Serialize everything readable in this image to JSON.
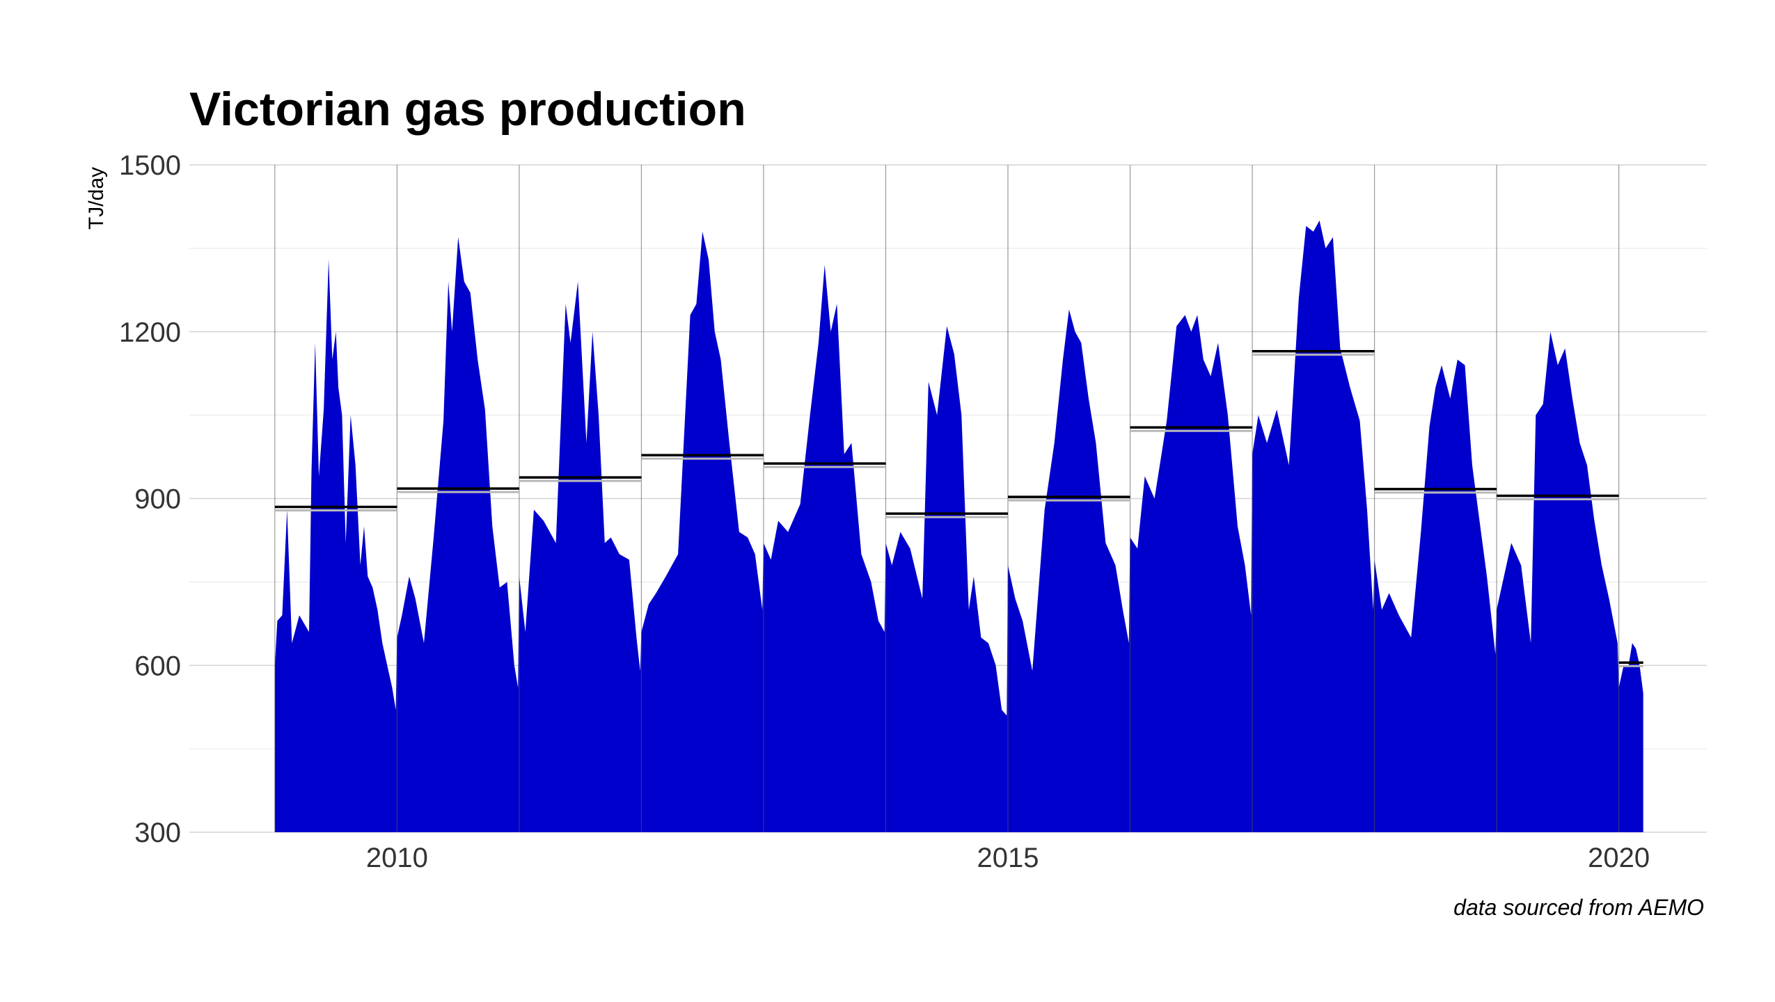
{
  "chart_data": {
    "type": "area",
    "title": "Victorian gas production",
    "ylabel": "TJ/day",
    "xlabel": "",
    "caption": "data sourced from AEMO",
    "ylim": [
      300,
      1500
    ],
    "xlim": [
      2008.3,
      2020.72
    ],
    "y_ticks": [
      300,
      600,
      900,
      1200,
      1500
    ],
    "y_tick_labels": [
      "300",
      "600",
      "900",
      "1200",
      "1500"
    ],
    "x_ticks": [
      2010,
      2015,
      2020
    ],
    "x_tick_labels": [
      "2010",
      "2015",
      "2020"
    ],
    "year_boundaries": [
      2009,
      2010,
      2011,
      2012,
      2013,
      2014,
      2015,
      2016,
      2017,
      2018,
      2019,
      2020
    ],
    "grid": true,
    "fill_color": "#0000CC",
    "mean_line_color": "#000000",
    "series": [
      {
        "x": [
          2009.0,
          2009.02,
          2009.06,
          2009.1,
          2009.14,
          2009.2,
          2009.28,
          2009.3,
          2009.33,
          2009.36,
          2009.4,
          2009.44,
          2009.47,
          2009.5,
          2009.52,
          2009.55,
          2009.58,
          2009.62,
          2009.66,
          2009.7,
          2009.73,
          2009.76,
          2009.8,
          2009.84,
          2009.88,
          2009.92,
          2009.96,
          2009.99,
          2010.0,
          2010.04,
          2010.1,
          2010.15,
          2010.22,
          2010.3,
          2010.38,
          2010.42,
          2010.45,
          2010.5,
          2010.55,
          2010.6,
          2010.66,
          2010.72,
          2010.78,
          2010.84,
          2010.9,
          2010.96,
          2010.99,
          2011.0,
          2011.05,
          2011.12,
          2011.2,
          2011.3,
          2011.38,
          2011.42,
          2011.48,
          2011.55,
          2011.6,
          2011.65,
          2011.7,
          2011.75,
          2011.82,
          2011.9,
          2011.96,
          2011.99,
          2012.0,
          2012.06,
          2012.12,
          2012.2,
          2012.3,
          2012.4,
          2012.45,
          2012.5,
          2012.55,
          2012.6,
          2012.65,
          2012.72,
          2012.8,
          2012.87,
          2012.93,
          2012.99,
          2013.0,
          2013.06,
          2013.12,
          2013.2,
          2013.3,
          2013.38,
          2013.45,
          2013.5,
          2013.55,
          2013.6,
          2013.66,
          2013.72,
          2013.8,
          2013.88,
          2013.94,
          2013.99,
          2014.0,
          2014.05,
          2014.12,
          2014.2,
          2014.3,
          2014.35,
          2014.42,
          2014.5,
          2014.56,
          2014.62,
          2014.68,
          2014.72,
          2014.78,
          2014.84,
          2014.9,
          2014.95,
          2014.99,
          2015.0,
          2015.06,
          2015.12,
          2015.2,
          2015.3,
          2015.38,
          2015.45,
          2015.5,
          2015.55,
          2015.6,
          2015.66,
          2015.72,
          2015.8,
          2015.88,
          2015.94,
          2015.99,
          2016.0,
          2016.06,
          2016.12,
          2016.2,
          2016.3,
          2016.38,
          2016.45,
          2016.5,
          2016.55,
          2016.6,
          2016.66,
          2016.72,
          2016.8,
          2016.88,
          2016.94,
          2016.99,
          2017.0,
          2017.05,
          2017.12,
          2017.2,
          2017.3,
          2017.38,
          2017.44,
          2017.5,
          2017.55,
          2017.6,
          2017.66,
          2017.72,
          2017.8,
          2017.88,
          2017.94,
          2017.99,
          2018.0,
          2018.06,
          2018.12,
          2018.2,
          2018.3,
          2018.38,
          2018.45,
          2018.5,
          2018.55,
          2018.62,
          2018.68,
          2018.74,
          2018.8,
          2018.86,
          2018.92,
          2018.99,
          2019.0,
          2019.06,
          2019.12,
          2019.2,
          2019.28,
          2019.32,
          2019.38,
          2019.44,
          2019.5,
          2019.56,
          2019.62,
          2019.68,
          2019.74,
          2019.8,
          2019.86,
          2019.92,
          2019.99,
          2020.0,
          2020.04,
          2020.08,
          2020.11,
          2020.14,
          2020.17,
          2020.2
        ],
        "y": [
          600,
          680,
          690,
          880,
          640,
          690,
          660,
          950,
          1180,
          940,
          1060,
          1330,
          1150,
          1200,
          1100,
          1050,
          820,
          1050,
          960,
          780,
          850,
          760,
          740,
          700,
          640,
          600,
          560,
          520,
          650,
          690,
          760,
          720,
          640,
          830,
          1040,
          1290,
          1200,
          1370,
          1290,
          1270,
          1150,
          1060,
          850,
          740,
          750,
          600,
          560,
          760,
          660,
          880,
          860,
          820,
          1250,
          1180,
          1290,
          1000,
          1200,
          1050,
          820,
          830,
          800,
          790,
          650,
          590,
          660,
          710,
          730,
          760,
          800,
          1230,
          1250,
          1380,
          1330,
          1200,
          1150,
          1000,
          840,
          830,
          800,
          700,
          820,
          790,
          860,
          840,
          890,
          1050,
          1180,
          1320,
          1200,
          1250,
          980,
          1000,
          800,
          750,
          680,
          660,
          820,
          780,
          840,
          810,
          720,
          1110,
          1050,
          1210,
          1160,
          1050,
          700,
          760,
          650,
          640,
          600,
          520,
          510,
          780,
          720,
          680,
          590,
          880,
          1000,
          1150,
          1240,
          1200,
          1180,
          1080,
          1000,
          820,
          780,
          700,
          640,
          830,
          810,
          940,
          900,
          1040,
          1210,
          1230,
          1200,
          1230,
          1150,
          1120,
          1180,
          1050,
          850,
          780,
          690,
          980,
          1050,
          1000,
          1060,
          960,
          1260,
          1390,
          1380,
          1400,
          1350,
          1370,
          1170,
          1100,
          1040,
          880,
          700,
          790,
          700,
          730,
          690,
          650,
          840,
          1030,
          1100,
          1140,
          1080,
          1150,
          1140,
          960,
          860,
          760,
          620,
          700,
          760,
          820,
          780,
          640,
          1050,
          1070,
          1200,
          1140,
          1170,
          1080,
          1000,
          960,
          860,
          780,
          720,
          640,
          560,
          600,
          600,
          640,
          630,
          600,
          550
        ],
        "annual_means": [
          {
            "year": 2009,
            "value": 885
          },
          {
            "year": 2010,
            "value": 918
          },
          {
            "year": 2011,
            "value": 938
          },
          {
            "year": 2012,
            "value": 978
          },
          {
            "year": 2013,
            "value": 963
          },
          {
            "year": 2014,
            "value": 873
          },
          {
            "year": 2015,
            "value": 903
          },
          {
            "year": 2016,
            "value": 1028
          },
          {
            "year": 2017,
            "value": 1165
          },
          {
            "year": 2018,
            "value": 917
          },
          {
            "year": 2019,
            "value": 905
          },
          {
            "year": 2020,
            "value": 605
          }
        ]
      }
    ]
  }
}
